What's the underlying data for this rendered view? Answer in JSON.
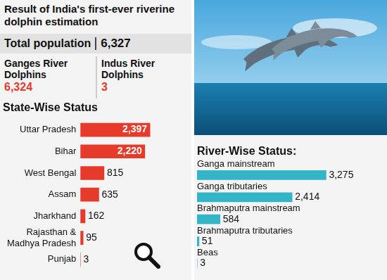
{
  "header": {
    "title": "Result of India's first-ever riverine dolphin estimation",
    "total": {
      "label": "Total population",
      "value": "6,327"
    },
    "species": [
      {
        "label": "Ganges River Dolphins",
        "value": "6,324"
      },
      {
        "label": "Indus River Dolphins",
        "value": "3"
      }
    ]
  },
  "chart_data": [
    {
      "type": "bar",
      "title": "State-Wise Status",
      "orientation": "horizontal",
      "categories": [
        "Uttar Pradesh",
        "Bihar",
        "West Bengal",
        "Assam",
        "Jharkhand",
        "Rajasthan & Madhya Pradesh",
        "Punjab"
      ],
      "values": [
        2397,
        2220,
        815,
        635,
        162,
        95,
        3
      ],
      "value_labels": [
        "2,397",
        "2,220",
        "815",
        "635",
        "162",
        "95",
        "3"
      ],
      "color": "#e63a2b",
      "data_labels": true,
      "tick_labels": "y",
      "grid": false
    },
    {
      "type": "bar",
      "title": "River-Wise Status:",
      "orientation": "horizontal",
      "categories": [
        "Ganga mainstream",
        "Ganga tributaries",
        "Brahmaputra mainstream",
        "Brahmaputra tributaries",
        "Beas"
      ],
      "values": [
        3275,
        2414,
        584,
        51,
        3
      ],
      "value_labels": [
        "3,275",
        "2,414",
        "584",
        "51",
        "3"
      ],
      "color": "#33b5c7",
      "data_labels": true,
      "tick_labels": "y",
      "grid": false
    }
  ]
}
